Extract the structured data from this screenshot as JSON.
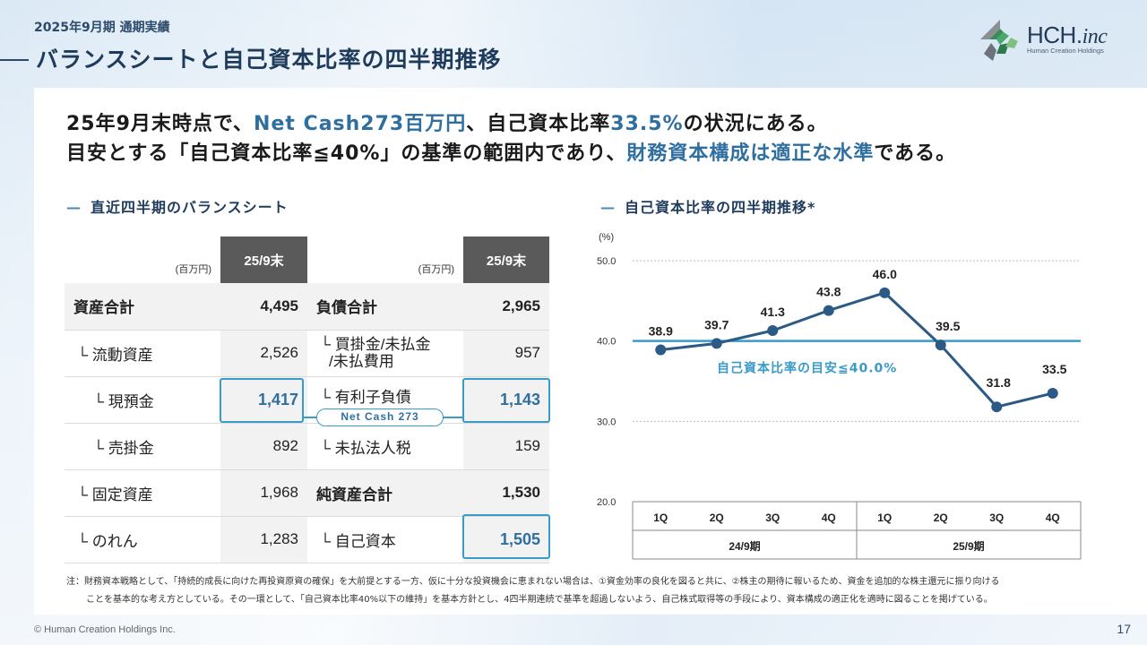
{
  "header": {
    "subtitle": "2025年9月期 通期実績",
    "title": "バランスシートと自己資本比率の四半期推移",
    "logo_main": "HCH.",
    "logo_inc": "inc",
    "logo_sub": "Human Creation Holdings"
  },
  "headline": {
    "line1_a": "25年9月末時点で、",
    "line1_b": "Net Cash273百万円",
    "line1_c": "、自己資本比率",
    "line1_d": "33.5%",
    "line1_e": "の状況にある。",
    "line2_a": "目安とする「自己資本比率≦40%」の基準の範囲内であり、",
    "line2_b": "財務資本構成は適正な水準",
    "line2_c": "である。"
  },
  "balance": {
    "section_title": "直近四半期のバランスシート",
    "unit": "(百万円)",
    "col_header": "25/9末",
    "rows": [
      {
        "l_label": "資産合計",
        "l_value": "4,495",
        "r_label": "負債合計",
        "r_value": "2,965"
      },
      {
        "l_label": "└ 流動資産",
        "l_value": "2,526",
        "r_label1": "└ 買掛金/未払金",
        "r_label2": "/未払費用",
        "r_value": "957"
      },
      {
        "l_label": "└ 現預金",
        "l_value": "1,417",
        "r_label": "└ 有利子負債",
        "r_value": "1,143"
      },
      {
        "l_label": "└ 売掛金",
        "l_value": "892",
        "r_label": "└ 未払法人税",
        "r_value": "159"
      },
      {
        "l_label": "└ 固定資産",
        "l_value": "1,968",
        "r_label": "純資産合計",
        "r_value": "1,530"
      },
      {
        "l_label": "└ のれん",
        "l_value": "1,283",
        "r_label": "└ 自己資本",
        "r_value": "1,505"
      }
    ],
    "net_cash_label": "Net Cash 273"
  },
  "chart_section_title": "自己資本比率の四半期推移*",
  "chart_data": {
    "type": "line",
    "ylabel": "(%)",
    "ylim": [
      20.0,
      50.0
    ],
    "yticks": [
      "20.0",
      "30.0",
      "40.0",
      "50.0"
    ],
    "categories": [
      "1Q",
      "2Q",
      "3Q",
      "4Q",
      "1Q",
      "2Q",
      "3Q",
      "4Q"
    ],
    "groups": [
      {
        "label": "24/9期",
        "span": [
          0,
          3
        ]
      },
      {
        "label": "25/9期",
        "span": [
          4,
          7
        ]
      }
    ],
    "series": [
      {
        "values": [
          38.9,
          39.7,
          41.3,
          43.8,
          46.0,
          39.5,
          31.8,
          33.5
        ]
      }
    ],
    "data_labels": [
      "38.9",
      "39.7",
      "41.3",
      "43.8",
      "46.0",
      "39.5",
      "31.8",
      "33.5"
    ],
    "target": {
      "value": 40.0,
      "label": "自己資本比率の目安≦40.0%"
    },
    "grid": true,
    "colors": {
      "line": "#2b5a87",
      "target": "#3a9bc9"
    }
  },
  "note": {
    "line1": "注：財務資本戦略として、「持続的成長に向けた再投資原資の確保」を大前提とする一方、仮に十分な投資機会に恵まれない場合は、①資金効率の良化を図ると共に、②株主の期待に報いるため、資金を追加的な株主還元に振り向ける",
    "line2": "ことを基本的な考え方としている。その一環として、「自己資本比率40%以下の維持」を基本方針とし、4四半期連続で基準を超過しないよう、自己株式取得等の手段により、資本構成の適正化を適時に図ることを掲げている。"
  },
  "footer": {
    "copyright": "© Human Creation Holdings Inc.",
    "page": "17"
  }
}
